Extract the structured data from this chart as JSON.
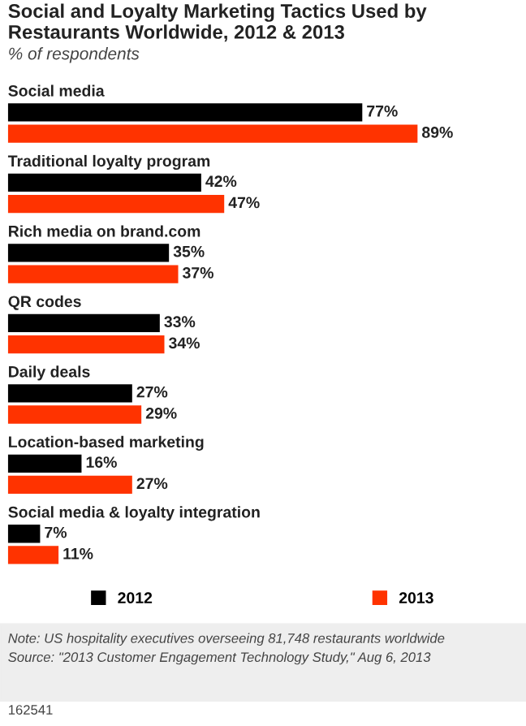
{
  "chart_data": {
    "type": "bar",
    "orientation": "horizontal",
    "title": "Social and Loyalty Marketing Tactics Used by Restaurants Worldwide, 2012 & 2013",
    "subtitle": "% of respondents",
    "categories": [
      "Social media",
      "Traditional loyalty program",
      "Rich media on brand.com",
      "QR codes",
      "Daily deals",
      "Location-based marketing",
      "Social media & loyalty integration"
    ],
    "series": [
      {
        "name": "2012",
        "color": "#000000",
        "values": [
          77,
          42,
          35,
          33,
          27,
          16,
          7
        ],
        "value_labels": [
          "77%",
          "42%",
          "35%",
          "33%",
          "27%",
          "16%",
          "7%"
        ]
      },
      {
        "name": "2013",
        "color": "#ff3300",
        "values": [
          89,
          47,
          37,
          34,
          29,
          27,
          11
        ],
        "value_labels": [
          "89%",
          "47%",
          "37%",
          "34%",
          "29%",
          "27%",
          "11%"
        ]
      }
    ],
    "legend": "bottom",
    "annotations": [
      "Note: US hospitality executives overseeing 81,748 restaurants worldwide",
      "Source: \"2013 Customer Engagement Technology Study,\" Aug 6, 2013",
      "162541"
    ]
  }
}
